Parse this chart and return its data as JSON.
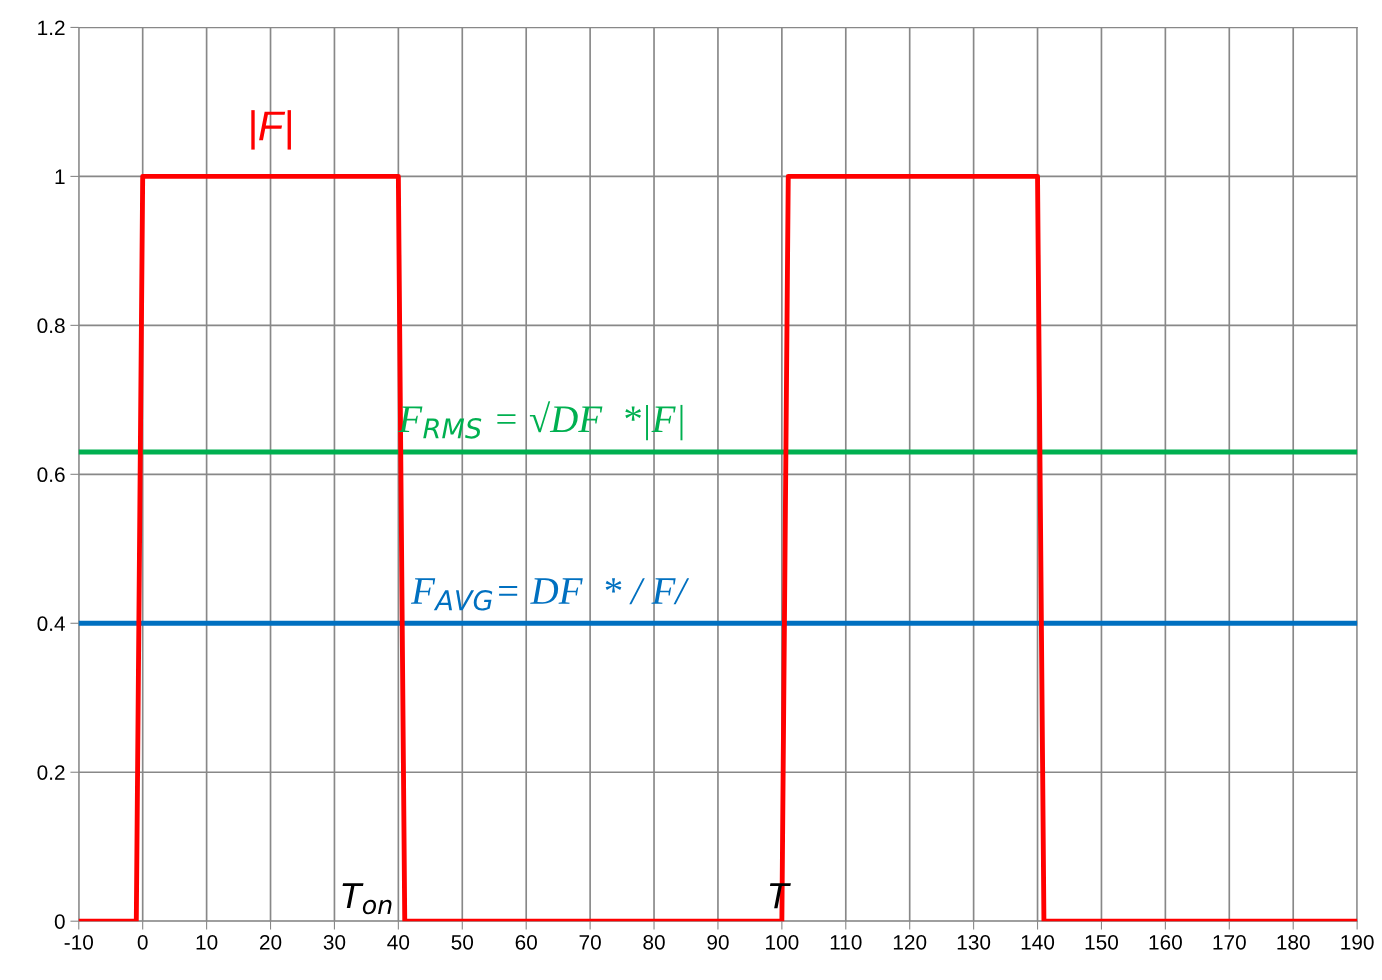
{
  "chart_data": {
    "type": "line",
    "x": [
      -10,
      -1,
      0,
      40,
      41,
      100,
      101,
      140,
      141,
      190
    ],
    "series": [
      {
        "name": "|F|",
        "color": "#ff0000",
        "values": [
          0,
          0,
          1,
          1,
          0,
          0,
          1,
          1,
          0,
          0
        ]
      }
    ],
    "ref_lines": [
      {
        "axis": "y",
        "value": 0.63,
        "label": "F$_{RMS}$ = √DF  *|F|",
        "color": "#00b050"
      },
      {
        "axis": "y",
        "value": 0.4,
        "label": "F$_{AVG}$= DF  * / F/",
        "color": "#0070c0"
      }
    ],
    "annotations": [
      {
        "text": "T$_{on}$",
        "x": 40,
        "y": 0
      },
      {
        "text": "T",
        "x": 100,
        "y": 0
      }
    ],
    "xlim": [
      -10,
      190
    ],
    "xticks": [
      -10,
      0,
      10,
      20,
      30,
      40,
      50,
      60,
      70,
      80,
      90,
      100,
      110,
      120,
      130,
      140,
      150,
      160,
      170,
      180,
      190
    ],
    "ylim": [
      0,
      1.2
    ],
    "yticks": [
      0,
      0.2,
      0.4,
      0.6,
      0.8,
      1,
      1.2
    ],
    "grid": true,
    "legend": false,
    "marker": "none",
    "line_style": "solid"
  }
}
